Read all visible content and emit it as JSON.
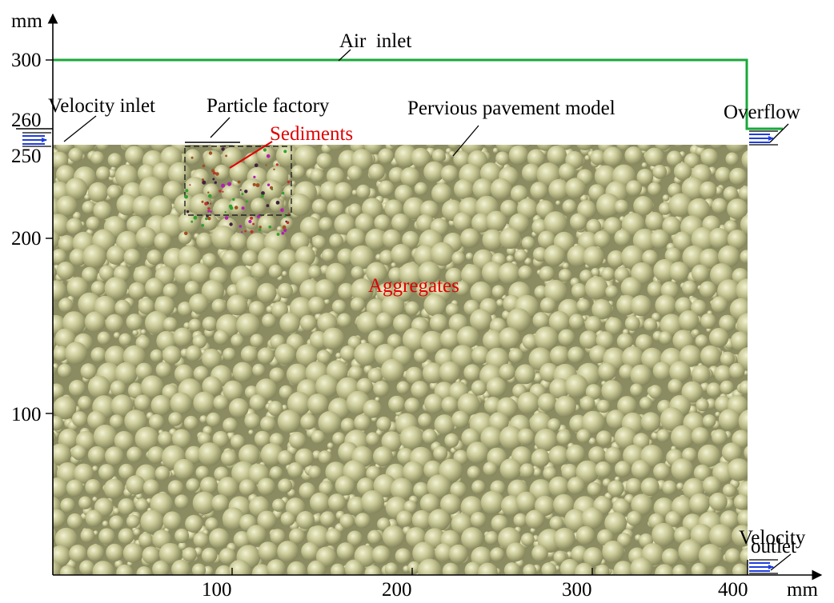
{
  "axes": {
    "y_unit": "mm",
    "x_unit": "mm",
    "y_ticks": [
      {
        "label": "300",
        "value": 300
      },
      {
        "label": "260",
        "value": 260
      },
      {
        "label": "250",
        "value": 250
      },
      {
        "label": "200",
        "value": 200
      },
      {
        "label": "100",
        "value": 100
      }
    ],
    "x_ticks": [
      {
        "label": "100",
        "value": 100
      },
      {
        "label": "200",
        "value": 200
      },
      {
        "label": "300",
        "value": 300
      },
      {
        "label": "400",
        "value": 400
      }
    ]
  },
  "labels": {
    "air_inlet": "Air  inlet",
    "velocity_inlet": "Velocity inlet",
    "particle_factory": "Particle factory",
    "sediments": "Sediments",
    "pervious_pavement_model": "Pervious pavement model",
    "overflow": "Overflow",
    "aggregates": "Aggregates",
    "velocity_outlet_1": "Velocity",
    "velocity_outlet_2": "outlet"
  },
  "colors": {
    "air_boundary": "#1aa83a",
    "aggregate_fill": "#c3c393",
    "aggregate_shade": "#8e8f62",
    "label_red": "#e00000",
    "inlet_arrows": "#1f3ee0"
  },
  "icons": {
    "velocity_inlet": "flow-arrows-icon",
    "overflow": "flow-arrows-icon",
    "velocity_outlet": "flow-arrows-icon"
  }
}
